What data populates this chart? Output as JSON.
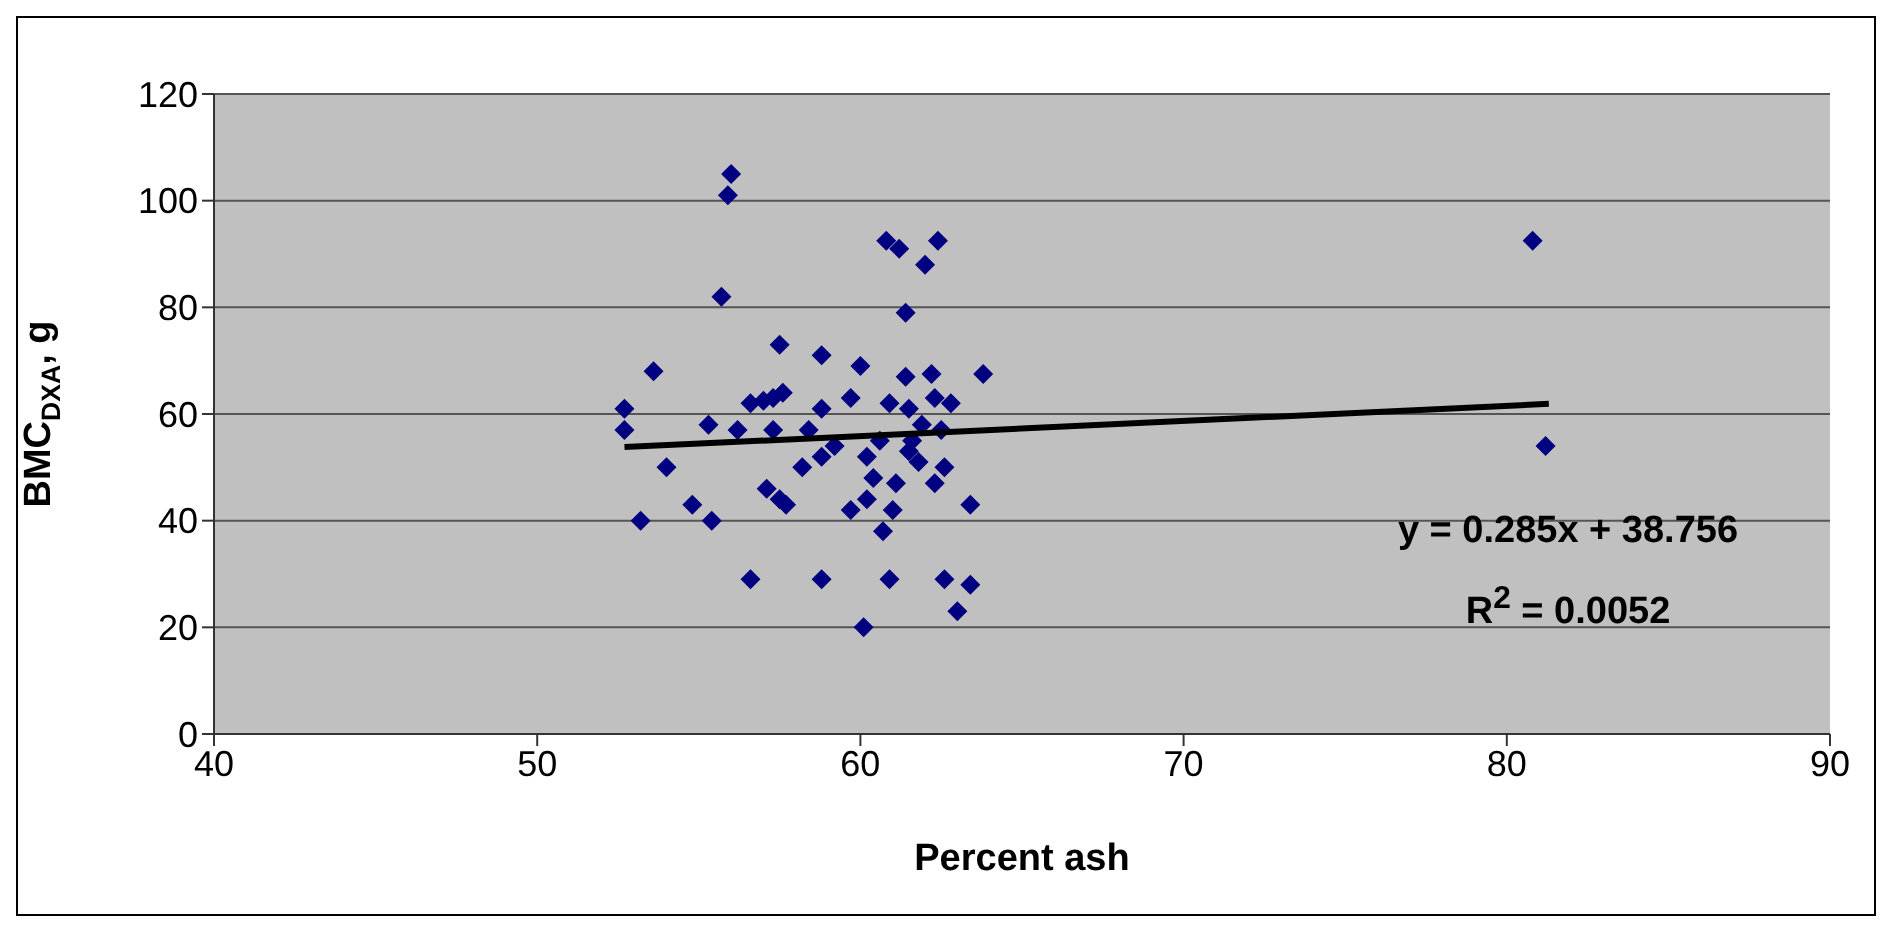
{
  "chart_data": {
    "type": "scatter",
    "xlabel": "Percent ash",
    "ylabel": "BMC$_{DXA}$, g",
    "xlim": [
      40,
      90
    ],
    "xticks": [
      40,
      50,
      60,
      70,
      80,
      90
    ],
    "ylim": [
      0,
      120
    ],
    "yticks": [
      0,
      20,
      40,
      60,
      80,
      100,
      120
    ],
    "grid": "y",
    "legend": false,
    "annotations": [
      "y = 0.285x + 38.756",
      "R$^{2}$ = 0.0052"
    ],
    "series": [
      {
        "marker": "diamond",
        "color": "#000080",
        "x": [
          52.7,
          52.7,
          53.2,
          53.6,
          54.0,
          54.8,
          55.3,
          55.4,
          55.7,
          55.9,
          56.0,
          56.2,
          56.6,
          56.6,
          57.0,
          57.1,
          57.3,
          57.3,
          57.5,
          57.5,
          57.7,
          57.6,
          58.2,
          58.4,
          58.8,
          58.8,
          58.8,
          58.8,
          59.2,
          59.7,
          59.7,
          60.0,
          60.1,
          60.2,
          60.2,
          60.4,
          60.6,
          60.7,
          60.8,
          60.9,
          60.9,
          61.0,
          61.1,
          61.2,
          61.4,
          61.4,
          61.5,
          61.5,
          61.6,
          61.8,
          61.9,
          62.0,
          62.2,
          62.4,
          62.3,
          62.3,
          62.5,
          62.6,
          62.6,
          62.8,
          63.0,
          63.4,
          63.4,
          63.8,
          80.8,
          81.2
        ],
        "values": [
          61,
          57,
          40,
          68,
          50,
          43,
          58,
          40,
          82,
          101,
          105,
          57,
          29,
          62,
          62.5,
          46,
          57,
          63,
          44,
          73,
          43,
          64,
          50,
          57,
          52,
          61,
          71,
          29,
          54,
          42,
          63,
          69,
          20,
          44,
          52,
          48,
          55,
          38,
          92.5,
          62,
          29,
          42,
          47,
          91,
          79,
          67,
          61,
          53,
          55,
          51,
          58,
          88,
          67.5,
          92.5,
          63,
          47,
          57,
          50,
          29,
          62,
          23,
          28,
          43,
          67.5,
          92.5,
          54
        ]
      },
      {
        "type": "line",
        "marker": "none",
        "color": "#000000",
        "x": [
          52.7,
          81.3
        ],
        "values": [
          53.8,
          61.9
        ]
      }
    ]
  }
}
